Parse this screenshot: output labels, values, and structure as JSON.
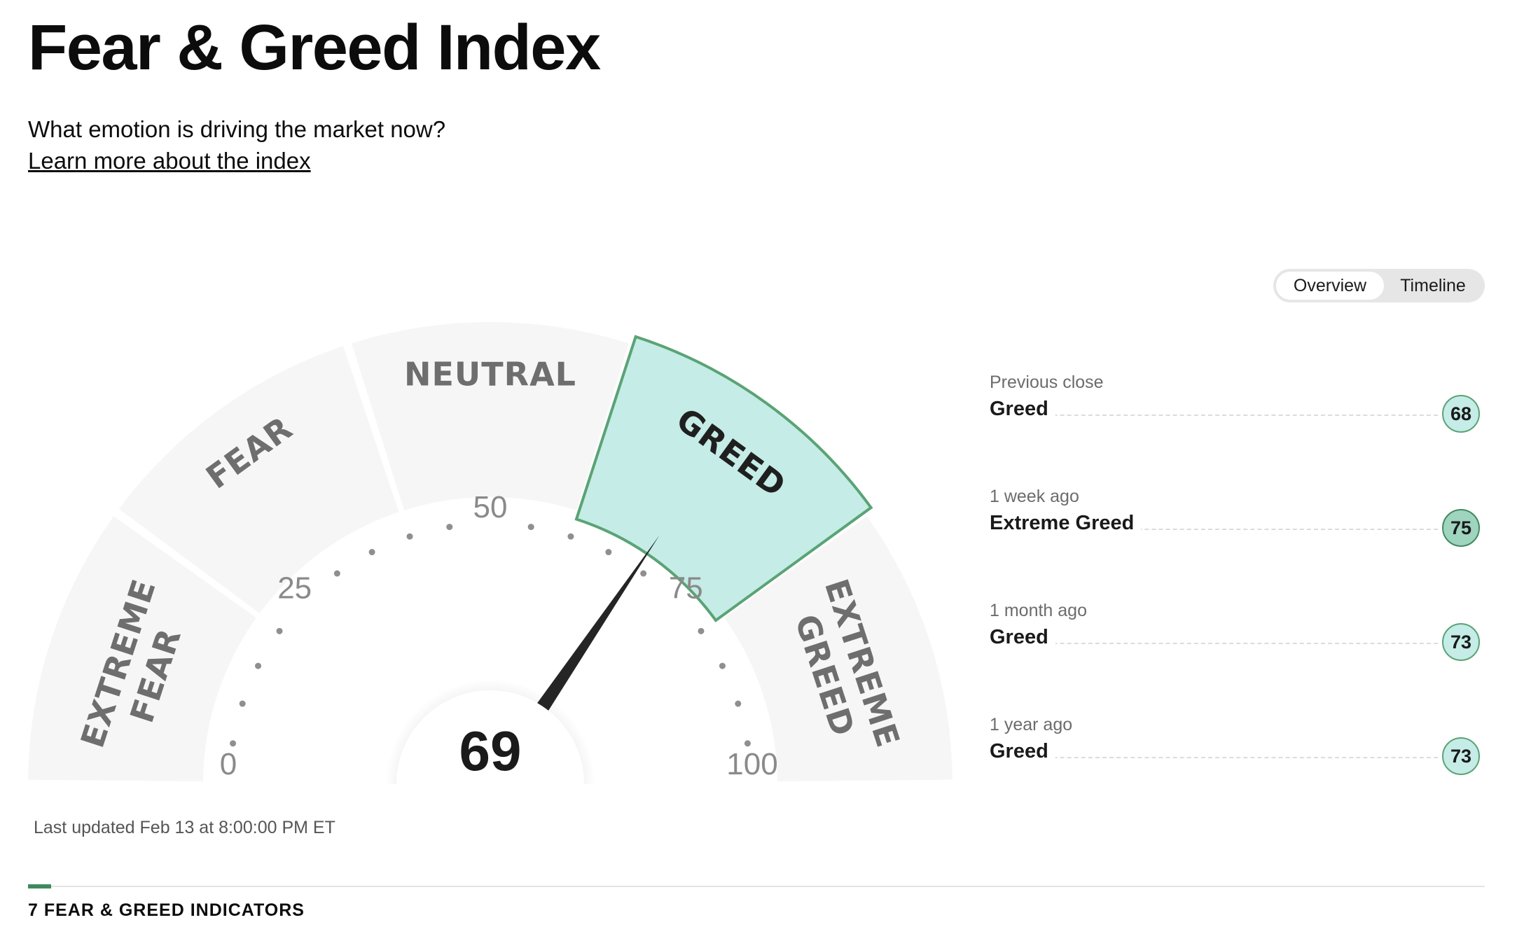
{
  "page": {
    "title": "Fear & Greed Index",
    "subtitle": "What emotion is driving the market now?",
    "learn_more": "Learn more about the index"
  },
  "gauge": {
    "score": "69",
    "score_value": 69,
    "range": [
      0,
      100
    ],
    "active_segment": "GREED",
    "segments": [
      {
        "line1": "EXTREME",
        "line2": "FEAR"
      },
      {
        "line1": "FEAR"
      },
      {
        "line1": "NEUTRAL"
      },
      {
        "line1": "GREED"
      },
      {
        "line1": "EXTREME",
        "line2": "GREED"
      }
    ],
    "tick_labels": [
      "0",
      "25",
      "50",
      "75",
      "100"
    ],
    "colors": {
      "segment_bg": "#f6f6f6",
      "active_fill": "#c5ece6",
      "active_stroke": "#5aa375",
      "needle": "#252525"
    }
  },
  "view_toggle": {
    "options": [
      "Overview",
      "Timeline"
    ],
    "selected": "Overview"
  },
  "history": [
    {
      "period": "Previous close",
      "label": "Greed",
      "value": "68"
    },
    {
      "period": "1 week ago",
      "label": "Extreme Greed",
      "value": "75"
    },
    {
      "period": "1 month ago",
      "label": "Greed",
      "value": "73"
    },
    {
      "period": "1 year ago",
      "label": "Greed",
      "value": "73"
    }
  ],
  "last_updated": "Last updated Feb 13 at 8:00:00 PM ET",
  "indicators_heading": "7 FEAR & GREED INDICATORS"
}
